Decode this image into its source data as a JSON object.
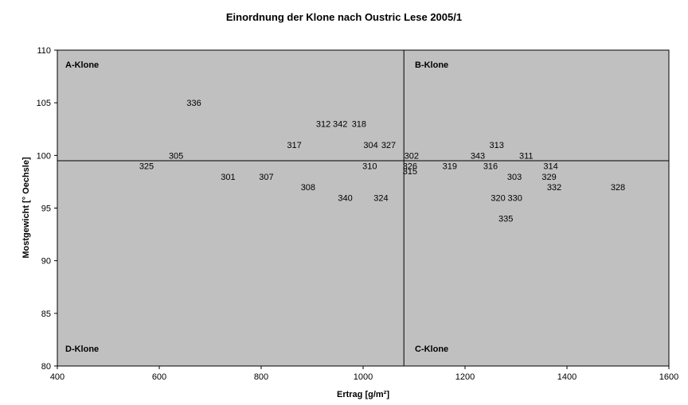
{
  "chart_data": {
    "type": "scatter",
    "title": "Einordnung der Klone nach Oustric Lese 2005/1",
    "xlabel": "Ertrag [g/m²]",
    "ylabel": "Mostgewicht [° Oechsle]",
    "xlim": [
      400,
      1600
    ],
    "ylim": [
      80,
      110
    ],
    "xticks": [
      400,
      600,
      800,
      1000,
      1200,
      1400,
      1600
    ],
    "yticks": [
      80,
      85,
      90,
      95,
      100,
      105,
      110
    ],
    "grid": false,
    "background_color": "#c0c0c0",
    "reference_lines": {
      "x": 1080,
      "y": 99.5
    },
    "quadrant_labels": {
      "top_left": "A-Klone",
      "top_right": "B-Klone",
      "bottom_left": "D-Klone",
      "bottom_right": "C-Klone"
    },
    "points": [
      {
        "label": "336",
        "x": 668,
        "y": 105
      },
      {
        "label": "305",
        "x": 633,
        "y": 100
      },
      {
        "label": "325",
        "x": 575,
        "y": 99
      },
      {
        "label": "301",
        "x": 735,
        "y": 98
      },
      {
        "label": "307",
        "x": 810,
        "y": 98
      },
      {
        "label": "317",
        "x": 865,
        "y": 101
      },
      {
        "label": "312",
        "x": 922,
        "y": 103
      },
      {
        "label": "342",
        "x": 955,
        "y": 103
      },
      {
        "label": "318",
        "x": 992,
        "y": 103
      },
      {
        "label": "308",
        "x": 892,
        "y": 97
      },
      {
        "label": "340",
        "x": 965,
        "y": 96
      },
      {
        "label": "304",
        "x": 1015,
        "y": 101
      },
      {
        "label": "327",
        "x": 1050,
        "y": 101
      },
      {
        "label": "310",
        "x": 1013,
        "y": 99
      },
      {
        "label": "324",
        "x": 1035,
        "y": 96
      },
      {
        "label": "302",
        "x": 1095,
        "y": 100
      },
      {
        "label": "326",
        "x": 1092,
        "y": 99
      },
      {
        "label": "315",
        "x": 1092,
        "y": 98.5
      },
      {
        "label": "319",
        "x": 1170,
        "y": 99
      },
      {
        "label": "343",
        "x": 1225,
        "y": 100
      },
      {
        "label": "313",
        "x": 1262,
        "y": 101
      },
      {
        "label": "316",
        "x": 1250,
        "y": 99
      },
      {
        "label": "311",
        "x": 1320,
        "y": 100
      },
      {
        "label": "303",
        "x": 1297,
        "y": 98
      },
      {
        "label": "314",
        "x": 1368,
        "y": 99
      },
      {
        "label": "329",
        "x": 1365,
        "y": 98
      },
      {
        "label": "332",
        "x": 1375,
        "y": 97
      },
      {
        "label": "328",
        "x": 1500,
        "y": 97
      },
      {
        "label": "320",
        "x": 1265,
        "y": 96
      },
      {
        "label": "330",
        "x": 1298,
        "y": 96
      },
      {
        "label": "335",
        "x": 1280,
        "y": 94
      }
    ]
  }
}
